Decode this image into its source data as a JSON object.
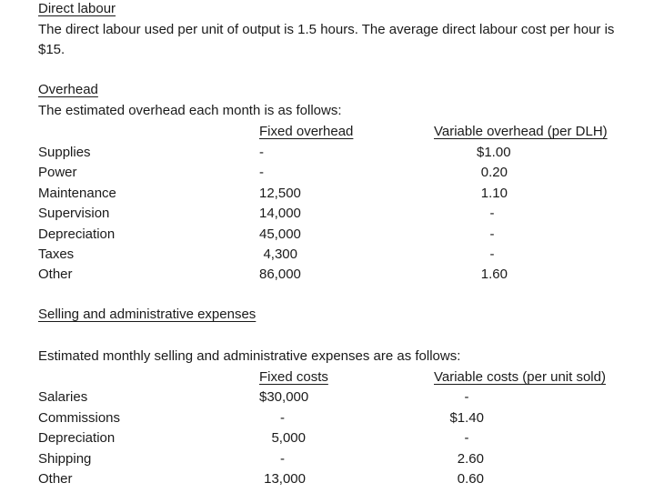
{
  "direct_labour": {
    "heading": "Direct labour",
    "body_line1": "The direct labour used per unit of output is 1.5 hours. The average direct labour cost per hour is",
    "body_line2": "$15."
  },
  "overhead": {
    "heading": "Overhead",
    "intro": "The estimated overhead each month is as follows:",
    "table": {
      "col1_header": "Fixed overhead",
      "col2_header": "Variable overhead (per DLH)",
      "rows": [
        {
          "label": "Supplies",
          "fixed": "-",
          "variable": "$1.00"
        },
        {
          "label": "Power",
          "fixed": "-",
          "variable": "0.20"
        },
        {
          "label": "Maintenance",
          "fixed": "12,500",
          "variable": "1.10"
        },
        {
          "label": "Supervision",
          "fixed": "14,000",
          "variable": "-"
        },
        {
          "label": "Depreciation",
          "fixed": "45,000",
          "variable": "-"
        },
        {
          "label": "Taxes",
          "fixed": "4,300",
          "variable": "-"
        },
        {
          "label": "Other",
          "fixed": "86,000",
          "variable": "1.60"
        }
      ]
    }
  },
  "selling_admin": {
    "heading": "Selling and administrative expenses",
    "intro": "Estimated monthly selling and administrative expenses are as follows:",
    "table": {
      "col1_header": "Fixed costs",
      "col2_header": "Variable costs (per unit sold)",
      "rows": [
        {
          "label": "Salaries",
          "fixed": "$30,000",
          "variable": "-"
        },
        {
          "label": "Commissions",
          "fixed": "-",
          "variable": "$1.40"
        },
        {
          "label": "Depreciation",
          "fixed": "5,000",
          "variable": "-"
        },
        {
          "label": "Shipping",
          "fixed": "-",
          "variable": "2.60"
        },
        {
          "label": "Other",
          "fixed": "13,000",
          "variable": "0.60"
        }
      ]
    }
  }
}
